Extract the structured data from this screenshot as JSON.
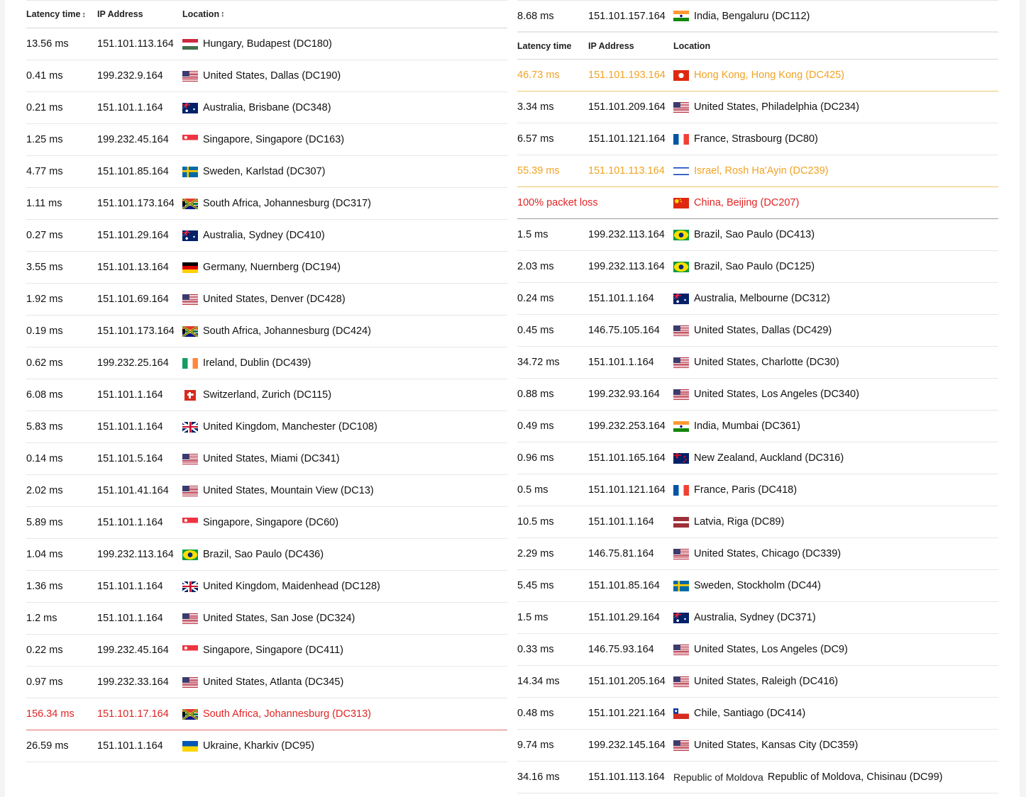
{
  "headers": {
    "latency": "Latency time",
    "ip": "IP Address",
    "location": "Location",
    "sort_indicator": "↕"
  },
  "colors": {
    "warning": "#f0a323",
    "error": "#e02424"
  },
  "left_rows": [
    {
      "latency": "13.56 ms",
      "ip": "151.101.113.164",
      "flag": "hu",
      "location": "Hungary, Budapest (DC180)",
      "status": "ok"
    },
    {
      "latency": "0.41 ms",
      "ip": "199.232.9.164",
      "flag": "us",
      "location": "United States, Dallas (DC190)",
      "status": "ok"
    },
    {
      "latency": "0.21 ms",
      "ip": "151.101.1.164",
      "flag": "au",
      "location": "Australia, Brisbane (DC348)",
      "status": "ok"
    },
    {
      "latency": "1.25 ms",
      "ip": "199.232.45.164",
      "flag": "sg",
      "location": "Singapore, Singapore (DC163)",
      "status": "ok"
    },
    {
      "latency": "4.77 ms",
      "ip": "151.101.85.164",
      "flag": "se",
      "location": "Sweden, Karlstad (DC307)",
      "status": "ok"
    },
    {
      "latency": "1.11 ms",
      "ip": "151.101.173.164",
      "flag": "za",
      "location": "South Africa, Johannesburg (DC317)",
      "status": "ok"
    },
    {
      "latency": "0.27 ms",
      "ip": "151.101.29.164",
      "flag": "au",
      "location": "Australia, Sydney (DC410)",
      "status": "ok"
    },
    {
      "latency": "3.55 ms",
      "ip": "151.101.13.164",
      "flag": "de",
      "location": "Germany, Nuernberg (DC194)",
      "status": "ok"
    },
    {
      "latency": "1.92 ms",
      "ip": "151.101.69.164",
      "flag": "us",
      "location": "United States, Denver (DC428)",
      "status": "ok"
    },
    {
      "latency": "0.19 ms",
      "ip": "151.101.173.164",
      "flag": "za",
      "location": "South Africa, Johannesburg (DC424)",
      "status": "ok"
    },
    {
      "latency": "0.62 ms",
      "ip": "199.232.25.164",
      "flag": "ie",
      "location": "Ireland, Dublin (DC439)",
      "status": "ok"
    },
    {
      "latency": "6.08 ms",
      "ip": "151.101.1.164",
      "flag": "ch",
      "location": "Switzerland, Zurich (DC115)",
      "status": "ok"
    },
    {
      "latency": "5.83 ms",
      "ip": "151.101.1.164",
      "flag": "gb",
      "location": "United Kingdom, Manchester (DC108)",
      "status": "ok"
    },
    {
      "latency": "0.14 ms",
      "ip": "151.101.5.164",
      "flag": "us",
      "location": "United States, Miami (DC341)",
      "status": "ok"
    },
    {
      "latency": "2.02 ms",
      "ip": "151.101.41.164",
      "flag": "us",
      "location": "United States, Mountain View (DC13)",
      "status": "ok"
    },
    {
      "latency": "5.89 ms",
      "ip": "151.101.1.164",
      "flag": "sg",
      "location": "Singapore, Singapore (DC60)",
      "status": "ok"
    },
    {
      "latency": "1.04 ms",
      "ip": "199.232.113.164",
      "flag": "br",
      "location": "Brazil, Sao Paulo (DC436)",
      "status": "ok"
    },
    {
      "latency": "1.36 ms",
      "ip": "151.101.1.164",
      "flag": "gb",
      "location": "United Kingdom, Maidenhead (DC128)",
      "status": "ok"
    },
    {
      "latency": "1.2 ms",
      "ip": "151.101.1.164",
      "flag": "us",
      "location": "United States, San Jose (DC324)",
      "status": "ok"
    },
    {
      "latency": "0.22 ms",
      "ip": "199.232.45.164",
      "flag": "sg",
      "location": "Singapore, Singapore (DC411)",
      "status": "ok"
    },
    {
      "latency": "0.97 ms",
      "ip": "199.232.33.164",
      "flag": "us",
      "location": "United States, Atlanta (DC345)",
      "status": "ok"
    },
    {
      "latency": "156.34 ms",
      "ip": "151.101.17.164",
      "flag": "za",
      "location": "South Africa, Johannesburg (DC313)",
      "status": "bad"
    },
    {
      "latency": "26.59 ms",
      "ip": "151.101.1.164",
      "flag": "ua",
      "location": "Ukraine, Kharkiv (DC95)",
      "status": "ok"
    }
  ],
  "right_top_row": {
    "latency": "8.68 ms",
    "ip": "151.101.157.164",
    "flag": "in",
    "location": "India, Bengaluru (DC112)",
    "status": "ok"
  },
  "right_rows": [
    {
      "latency": "46.73 ms",
      "ip": "151.101.193.164",
      "flag": "hk",
      "location": "Hong Kong, Hong Kong (DC425)",
      "status": "warn"
    },
    {
      "latency": "3.34 ms",
      "ip": "151.101.209.164",
      "flag": "us",
      "location": "United States, Philadelphia (DC234)",
      "status": "ok"
    },
    {
      "latency": "6.57 ms",
      "ip": "151.101.121.164",
      "flag": "fr",
      "location": "France, Strasbourg (DC80)",
      "status": "ok"
    },
    {
      "latency": "55.39 ms",
      "ip": "151.101.113.164",
      "flag": "il",
      "location": "Israel, Rosh Ha'Ayin (DC239)",
      "status": "warn"
    },
    {
      "latency": "100% packet loss",
      "ip": "",
      "flag": "cn",
      "location": "China, Beijing (DC207)",
      "status": "loss"
    },
    {
      "latency": "1.5 ms",
      "ip": "199.232.113.164",
      "flag": "br",
      "location": "Brazil, Sao Paulo (DC413)",
      "status": "ok"
    },
    {
      "latency": "2.03 ms",
      "ip": "199.232.113.164",
      "flag": "br",
      "location": "Brazil, Sao Paulo (DC125)",
      "status": "ok"
    },
    {
      "latency": "0.24 ms",
      "ip": "151.101.1.164",
      "flag": "au",
      "location": "Australia, Melbourne (DC312)",
      "status": "ok"
    },
    {
      "latency": "0.45 ms",
      "ip": "146.75.105.164",
      "flag": "us",
      "location": "United States, Dallas (DC429)",
      "status": "ok"
    },
    {
      "latency": "34.72 ms",
      "ip": "151.101.1.164",
      "flag": "us",
      "location": "United States, Charlotte (DC30)",
      "status": "ok"
    },
    {
      "latency": "0.88 ms",
      "ip": "199.232.93.164",
      "flag": "us",
      "location": "United States, Los Angeles (DC340)",
      "status": "ok"
    },
    {
      "latency": "0.49 ms",
      "ip": "199.232.253.164",
      "flag": "in",
      "location": "India, Mumbai (DC361)",
      "status": "ok"
    },
    {
      "latency": "0.96 ms",
      "ip": "151.101.165.164",
      "flag": "nz",
      "location": "New Zealand, Auckland (DC316)",
      "status": "ok"
    },
    {
      "latency": "0.5 ms",
      "ip": "151.101.121.164",
      "flag": "fr",
      "location": "France, Paris (DC418)",
      "status": "ok"
    },
    {
      "latency": "10.5 ms",
      "ip": "151.101.1.164",
      "flag": "lv",
      "location": "Latvia, Riga (DC89)",
      "status": "ok"
    },
    {
      "latency": "2.29 ms",
      "ip": "146.75.81.164",
      "flag": "us",
      "location": "United States, Chicago (DC339)",
      "status": "ok"
    },
    {
      "latency": "5.45 ms",
      "ip": "151.101.85.164",
      "flag": "se",
      "location": "Sweden, Stockholm (DC44)",
      "status": "ok"
    },
    {
      "latency": "1.5 ms",
      "ip": "151.101.29.164",
      "flag": "au",
      "location": "Australia, Sydney (DC371)",
      "status": "ok"
    },
    {
      "latency": "0.33 ms",
      "ip": "146.75.93.164",
      "flag": "us",
      "location": "United States, Los Angeles (DC9)",
      "status": "ok"
    },
    {
      "latency": "14.34 ms",
      "ip": "151.101.205.164",
      "flag": "us",
      "location": "United States, Raleigh (DC416)",
      "status": "ok"
    },
    {
      "latency": "0.48 ms",
      "ip": "151.101.221.164",
      "flag": "cl",
      "location": "Chile, Santiago (DC414)",
      "status": "ok"
    },
    {
      "latency": "9.74 ms",
      "ip": "199.232.145.164",
      "flag": "us",
      "location": "United States, Kansas City (DC359)",
      "status": "ok"
    },
    {
      "latency": "34.16 ms",
      "ip": "151.101.113.164",
      "flag": "md",
      "flag_alt": "Republic of Moldova",
      "location": "Republic of Moldova, Chisinau (DC99)",
      "status": "ok"
    }
  ]
}
